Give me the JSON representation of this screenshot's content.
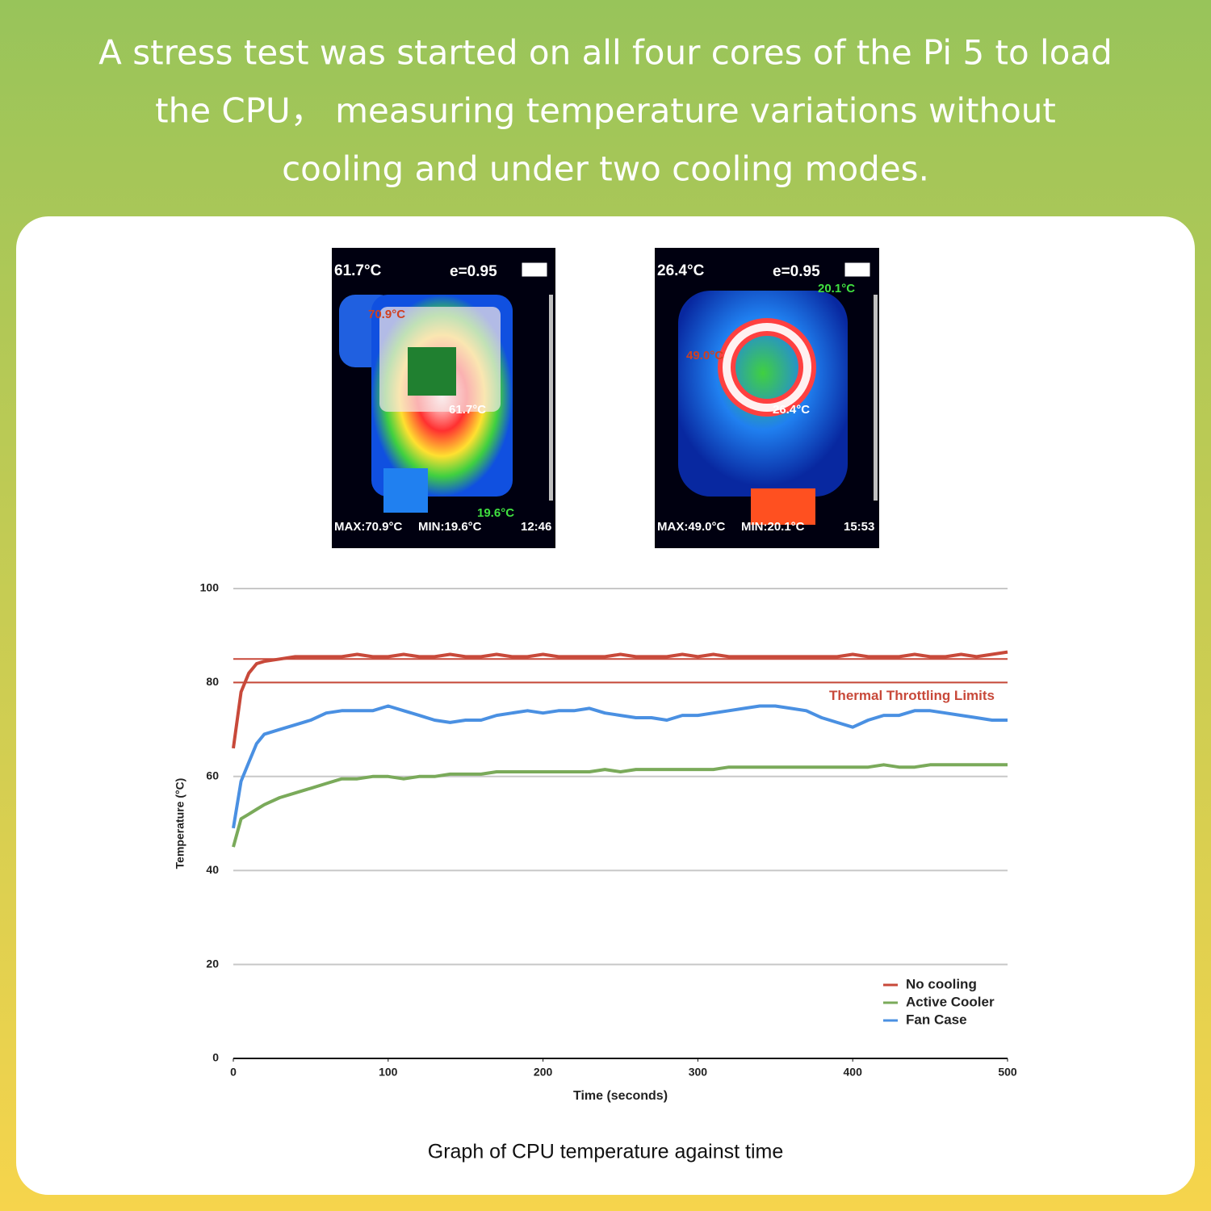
{
  "header": {
    "text_lines": [
      "A  stress test was started on all four cores of the Pi 5 to load",
      "the CPU， measuring temperature variations without",
      "cooling and under two cooling modes."
    ]
  },
  "thermal_images": [
    {
      "temp": "61.7°C",
      "emissivity": "e=0.95",
      "max": "MAX:70.9°C",
      "min": "MIN:19.6°C",
      "time": "12:46",
      "spot_labels": [
        "70.9°C",
        "61.7°C",
        "19.6°C"
      ]
    },
    {
      "temp": "26.4°C",
      "emissivity": "e=0.95",
      "max": "MAX:49.0°C",
      "min": "MIN:20.1°C",
      "time": "15:53",
      "spot_labels": [
        "20.1°C",
        "49.0°C",
        "26.4°C"
      ]
    }
  ],
  "chart_data": {
    "type": "line",
    "x_label": "Time (seconds)",
    "y_label": "Temperature (°C)",
    "x": [
      0,
      5,
      10,
      15,
      20,
      30,
      40,
      50,
      60,
      70,
      80,
      90,
      100,
      110,
      120,
      130,
      140,
      150,
      160,
      170,
      180,
      190,
      200,
      210,
      220,
      230,
      240,
      250,
      260,
      270,
      280,
      290,
      300,
      310,
      320,
      330,
      340,
      350,
      360,
      370,
      380,
      390,
      400,
      410,
      420,
      430,
      440,
      450,
      460,
      470,
      480,
      490,
      500
    ],
    "series": [
      {
        "name": "No cooling",
        "color": "#c8493a",
        "values": [
          66,
          78,
          82,
          84,
          84.5,
          85,
          85.5,
          85.5,
          85.5,
          85.5,
          86,
          85.5,
          85.5,
          86,
          85.5,
          85.5,
          86,
          85.5,
          85.5,
          86,
          85.5,
          85.5,
          86,
          85.5,
          85.5,
          85.5,
          85.5,
          86,
          85.5,
          85.5,
          85.5,
          86,
          85.5,
          86,
          85.5,
          85.5,
          85.5,
          85.5,
          85.5,
          85.5,
          85.5,
          85.5,
          86,
          85.5,
          85.5,
          85.5,
          86,
          85.5,
          85.5,
          86,
          85.5,
          86,
          86.5
        ]
      },
      {
        "name": "Active Cooler",
        "color": "#7aaa5a",
        "values": [
          45,
          51,
          52,
          53,
          54,
          55.5,
          56.5,
          57.5,
          58.5,
          59.5,
          59.5,
          60,
          60,
          59.5,
          60,
          60,
          60.5,
          60.5,
          60.5,
          61,
          61,
          61,
          61,
          61,
          61,
          61,
          61.5,
          61,
          61.5,
          61.5,
          61.5,
          61.5,
          61.5,
          61.5,
          62,
          62,
          62,
          62,
          62,
          62,
          62,
          62,
          62,
          62,
          62.5,
          62,
          62,
          62.5,
          62.5,
          62.5,
          62.5,
          62.5,
          62.5
        ]
      },
      {
        "name": "Fan Case",
        "color": "#4a90e2",
        "values": [
          49,
          59,
          63,
          67,
          69,
          70,
          71,
          72,
          73.5,
          74,
          74,
          74,
          75,
          74,
          73,
          72,
          71.5,
          72,
          72,
          73,
          73.5,
          74,
          73.5,
          74,
          74,
          74.5,
          73.5,
          73,
          72.5,
          72.5,
          72,
          73,
          73,
          73.5,
          74,
          74.5,
          75,
          75,
          74.5,
          74,
          72.5,
          71.5,
          70.5,
          72,
          73,
          73,
          74,
          74,
          73.5,
          73,
          72.5,
          72,
          72
        ]
      }
    ],
    "reference_lines": [
      {
        "value": 85,
        "color": "#c8493a"
      },
      {
        "value": 80,
        "color": "#c8493a",
        "label": "Thermal Throttling Limits"
      }
    ],
    "xlim": [
      0,
      500
    ],
    "xticks": [
      0,
      100,
      200,
      300,
      400,
      500
    ],
    "ylim": [
      0,
      100
    ],
    "yticks": [
      0,
      20,
      40,
      60,
      80,
      100
    ],
    "grid": true,
    "legend": "lower right"
  },
  "caption": "Graph of CPU temperature against time"
}
